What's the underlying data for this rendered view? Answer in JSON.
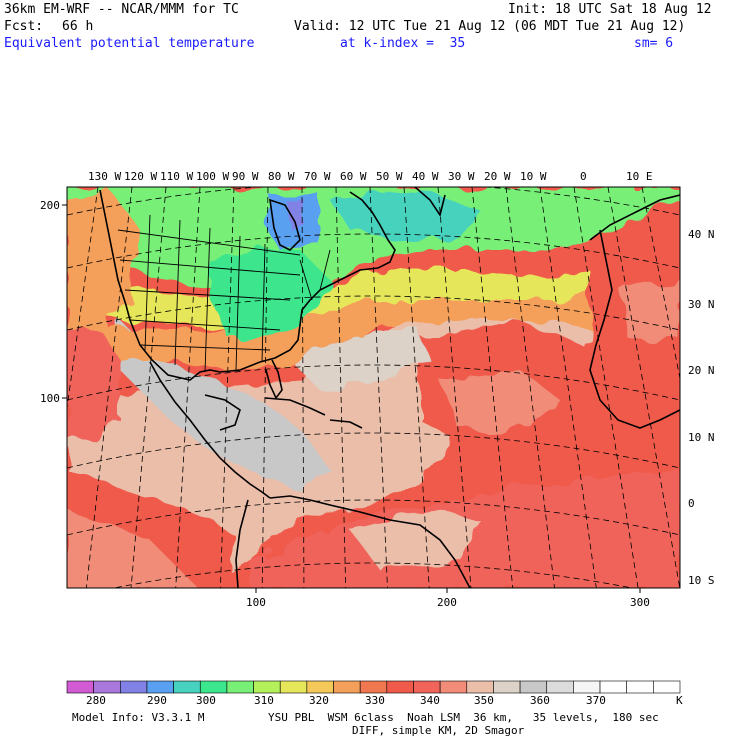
{
  "header": {
    "model": "36km EM-WRF -- NCAR/MMM for TC",
    "init": "Init: 18 UTC Sat 18 Aug 12",
    "fcst_label": "Fcst:",
    "fcst_value": "66 h",
    "valid": "Valid: 12 UTC Tue 21 Aug 12 (06 MDT Tue 21 Aug 12)",
    "field": "Equivalent potential temperature",
    "level": "at k-index =  35",
    "smoothing": "sm= 6"
  },
  "map": {
    "top_longitudes": [
      "130 W",
      "120 W",
      "110 W",
      "100 W",
      "90 W",
      "80 W",
      "70 W",
      "60 W",
      "50 W",
      "40 W",
      "30 W",
      "20 W",
      "10 W",
      "0",
      "10 E"
    ],
    "right_latitudes": [
      "40 N",
      "30 N",
      "20 N",
      "10 N",
      "0",
      "10 S"
    ],
    "left_grid": [
      "200",
      "100"
    ],
    "bottom_grid": [
      "100",
      "200",
      "300"
    ]
  },
  "colorbar": {
    "labels": [
      "280",
      "290",
      "300",
      "310",
      "320",
      "330",
      "340",
      "350",
      "360",
      "370"
    ],
    "unit": "K",
    "colors": [
      "#d25ad2",
      "#aa78dc",
      "#8282e6",
      "#5aa0f0",
      "#46d2be",
      "#3ce68c",
      "#78f078",
      "#b4f05a",
      "#e6e65a",
      "#f5c85a",
      "#f5a05a",
      "#f07850",
      "#f05a4b",
      "#f0645a",
      "#f08c78",
      "#ebbeaa",
      "#dcd2c8",
      "#c8c8c8",
      "#dcdcdc",
      "#f5f5f5",
      "#ffffff",
      "#ffffff",
      "#ffffff"
    ]
  },
  "footer": {
    "line1_left": "Model Info: V3.3.1 M",
    "line1_right": "YSU PBL  WSM 6class  Noah LSM  36 km,   35 levels,  180 sec",
    "line2": "DIFF, simple KM, 2D Smagor"
  }
}
